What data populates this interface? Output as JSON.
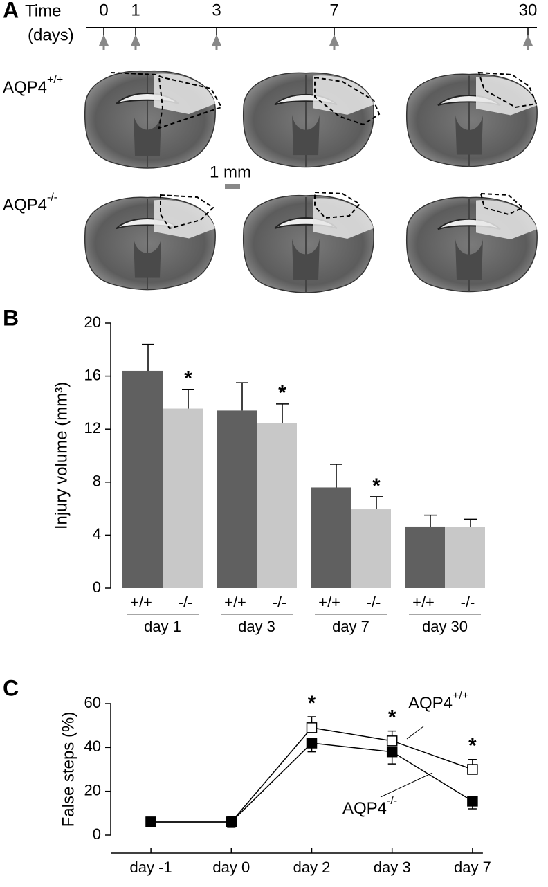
{
  "panel_a": {
    "label": "A",
    "time_label": "Time",
    "unit_label": "(days)",
    "time_points": [
      "0",
      "1",
      "3",
      "7",
      "30"
    ],
    "rows": [
      {
        "name": "AQP4",
        "genotype": "+/+"
      },
      {
        "name": "AQP4",
        "genotype": "-/-"
      }
    ],
    "scale_bar": "1 mm"
  },
  "chart_data": [
    {
      "type": "bar",
      "label": "B",
      "y_label": "Injury volume (mm³)",
      "categories": [
        "day 1",
        "day 3",
        "day 7",
        "day 30"
      ],
      "series": [
        {
          "name": "+/+",
          "color": "#606060",
          "values": [
            16.4,
            13.4,
            7.6,
            4.65
          ],
          "errors": [
            2.0,
            2.1,
            1.75,
            0.85
          ]
        },
        {
          "name": "-/-",
          "color": "#c8c8c8",
          "values": [
            13.55,
            12.45,
            5.95,
            4.6
          ],
          "errors": [
            1.45,
            1.45,
            0.95,
            0.6
          ],
          "markers": [
            "*",
            "*",
            "*",
            null
          ]
        }
      ],
      "ylim": [
        0,
        20
      ],
      "yticks": [
        0,
        4,
        8,
        12,
        16,
        20
      ]
    },
    {
      "type": "line",
      "label": "C",
      "y_label": "False steps (%)",
      "categories": [
        "day -1",
        "day 0",
        "day 2",
        "day 3",
        "day 7"
      ],
      "series": [
        {
          "name": "AQP4",
          "genotype": "+/+",
          "color": "#ffffff",
          "values": [
            6,
            6,
            49,
            43,
            30
          ],
          "errors": [
            2,
            2.5,
            5,
            4.5,
            4.5
          ],
          "markers": [
            null,
            null,
            "*",
            "*",
            "*"
          ]
        },
        {
          "name": "AQP4",
          "genotype": "-/-",
          "color": "#000000",
          "values": [
            6,
            6,
            42,
            38,
            15.5
          ],
          "errors": [
            2,
            2.5,
            4,
            5.5,
            3.5
          ]
        }
      ],
      "ylim": [
        0,
        60
      ],
      "yticks": [
        0,
        20,
        40,
        60
      ]
    }
  ]
}
